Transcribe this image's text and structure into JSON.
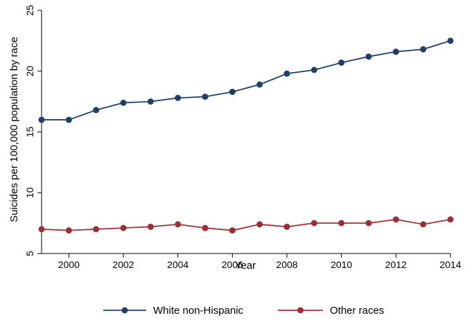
{
  "chart_data": {
    "type": "line",
    "xlabel": "Year",
    "ylabel": "Suicides per 100,000 population by race",
    "x": [
      1999,
      2000,
      2001,
      2002,
      2003,
      2004,
      2005,
      2006,
      2007,
      2008,
      2009,
      2010,
      2011,
      2012,
      2013,
      2014
    ],
    "xlim": [
      1999,
      2014
    ],
    "xticks": [
      2000,
      2002,
      2004,
      2006,
      2008,
      2010,
      2012,
      2014
    ],
    "ylim": [
      5,
      25
    ],
    "yticks": [
      5,
      10,
      15,
      20,
      25
    ],
    "grid": false,
    "legend_position": "bottom",
    "series": [
      {
        "name": "White non-Hispanic",
        "color": "#1f3f66",
        "values": [
          16.0,
          16.0,
          16.8,
          17.4,
          17.5,
          17.8,
          17.9,
          18.3,
          18.9,
          19.8,
          20.1,
          20.7,
          21.2,
          21.6,
          21.8,
          22.5
        ]
      },
      {
        "name": "Other races",
        "color": "#9b2d35",
        "values": [
          7.0,
          6.9,
          7.0,
          7.1,
          7.2,
          7.4,
          7.1,
          6.9,
          7.4,
          7.2,
          7.5,
          7.5,
          7.5,
          7.8,
          7.4,
          7.8
        ]
      }
    ]
  }
}
